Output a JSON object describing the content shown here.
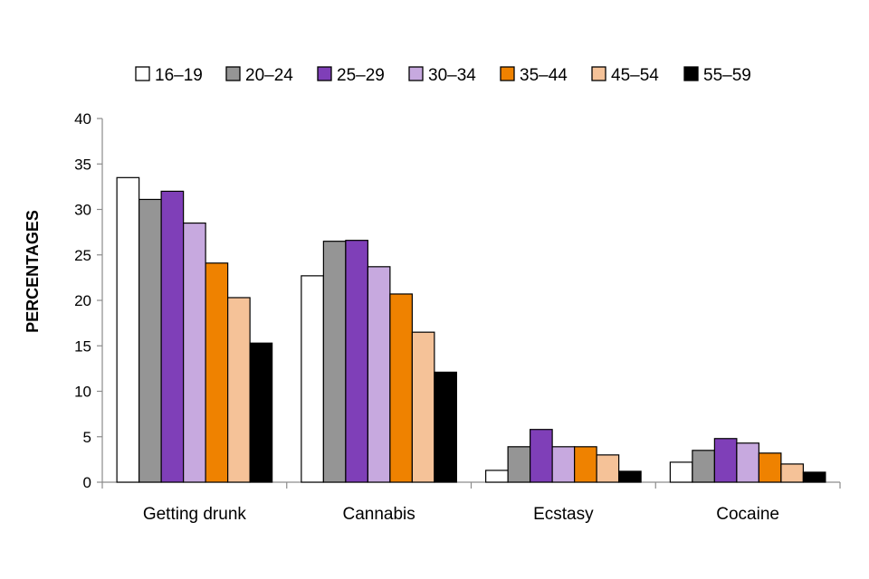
{
  "chart_data": {
    "type": "bar",
    "title": "",
    "xlabel": "",
    "ylabel": "PERCENTAGES",
    "ylim": [
      0,
      40
    ],
    "yticks": [
      0,
      5,
      10,
      15,
      20,
      25,
      30,
      35,
      40
    ],
    "grid": false,
    "legend_position": "top",
    "categories": [
      "Getting drunk",
      "Cannabis",
      "Ecstasy",
      "Cocaine"
    ],
    "series": [
      {
        "name": "16–19",
        "color": "#ffffff",
        "values": [
          33.5,
          22.7,
          1.3,
          2.2
        ]
      },
      {
        "name": "20–24",
        "color": "#959595",
        "values": [
          31.1,
          26.5,
          3.9,
          3.5
        ]
      },
      {
        "name": "25–29",
        "color": "#7f3fb8",
        "values": [
          32.0,
          26.6,
          5.8,
          4.8
        ]
      },
      {
        "name": "30–34",
        "color": "#c7a9df",
        "values": [
          28.5,
          23.7,
          3.9,
          4.3
        ]
      },
      {
        "name": "35–44",
        "color": "#ef8200",
        "values": [
          24.1,
          20.7,
          3.9,
          3.2
        ]
      },
      {
        "name": "45–54",
        "color": "#f5c298",
        "values": [
          20.3,
          16.5,
          3.0,
          2.0
        ]
      },
      {
        "name": "55–59",
        "color": "#000000",
        "values": [
          15.3,
          12.1,
          1.2,
          1.1
        ]
      }
    ]
  }
}
